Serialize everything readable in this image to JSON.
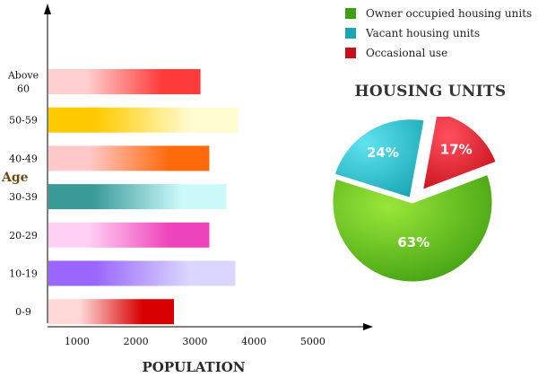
{
  "chart_data": [
    {
      "type": "bar",
      "orientation": "horizontal",
      "categories": [
        "Above 60",
        "50-59",
        "40-49",
        "30-39",
        "20-29",
        "10-19",
        "0-9"
      ],
      "category_lines": [
        [
          "Above",
          "60"
        ],
        [
          "50-59"
        ],
        [
          "40-49"
        ],
        [
          "30-39"
        ],
        [
          "20-29"
        ],
        [
          "10-19"
        ],
        [
          "0-9"
        ]
      ],
      "values": [
        3080,
        3720,
        3230,
        3520,
        3230,
        3670,
        2630
      ],
      "colors": [
        [
          "#ffcfcf",
          "#ff3a3a"
        ],
        [
          "#ffca00",
          "#fffcd0"
        ],
        [
          "#ffc9c9",
          "#ff6a0a"
        ],
        [
          "#3a9a98",
          "#ccfafa"
        ],
        [
          "#ffd0f4",
          "#ee44bb"
        ],
        [
          "#9a66ff",
          "#d9d6ff"
        ],
        [
          "#ffd8d8",
          "#d80000"
        ]
      ],
      "xlabel": "POPULATION",
      "ylabel": "Age",
      "xticks": [
        1000,
        2000,
        3000,
        4000,
        5000
      ],
      "xlim": [
        500,
        5900
      ]
    },
    {
      "type": "pie",
      "title": "HOUSING UNITS",
      "labels": [
        "Owner occupied housing units",
        "Vacant housing units",
        "Occasional use"
      ],
      "values": [
        63,
        24,
        17
      ],
      "value_labels": [
        "63%",
        "24%",
        "17%"
      ],
      "colors": [
        "#3f9f10",
        "#1aa7b5",
        "#c8101a"
      ],
      "legend_position": "top-right"
    }
  ]
}
